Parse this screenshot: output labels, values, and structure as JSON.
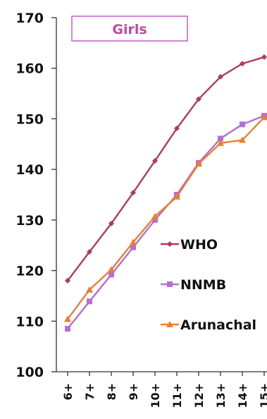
{
  "chart_data": {
    "type": "line",
    "title": "Girls",
    "categories": [
      "6+",
      "7+",
      "8+",
      "9+",
      "10+",
      "11+",
      "12+",
      "13+",
      "14+",
      "15+"
    ],
    "ylim": [
      100,
      170
    ],
    "yticks": [
      "100",
      "110",
      "120",
      "130",
      "140",
      "150",
      "160",
      "170"
    ],
    "grid": false,
    "legend_position": "right",
    "series": [
      {
        "name": "WHO",
        "color": "#b03a5e",
        "marker": "diamond",
        "values": [
          118.0,
          123.7,
          129.3,
          135.4,
          141.7,
          148.1,
          153.9,
          158.3,
          160.9,
          162.2
        ]
      },
      {
        "name": "NNMB",
        "color": "#b36fd1",
        "marker": "square",
        "values": [
          108.5,
          113.9,
          119.2,
          124.6,
          130.0,
          135.0,
          141.3,
          146.1,
          148.9,
          150.6
        ]
      },
      {
        "name": "Arunachal",
        "color": "#ed7d31",
        "marker": "triangle",
        "values": [
          110.4,
          116.2,
          120.2,
          125.6,
          130.7,
          134.6,
          141.1,
          145.2,
          145.8,
          150.3
        ]
      }
    ]
  },
  "colors": {
    "title_border": "#c060c8",
    "title_text": "#c04a9e",
    "axis": "#333333"
  }
}
